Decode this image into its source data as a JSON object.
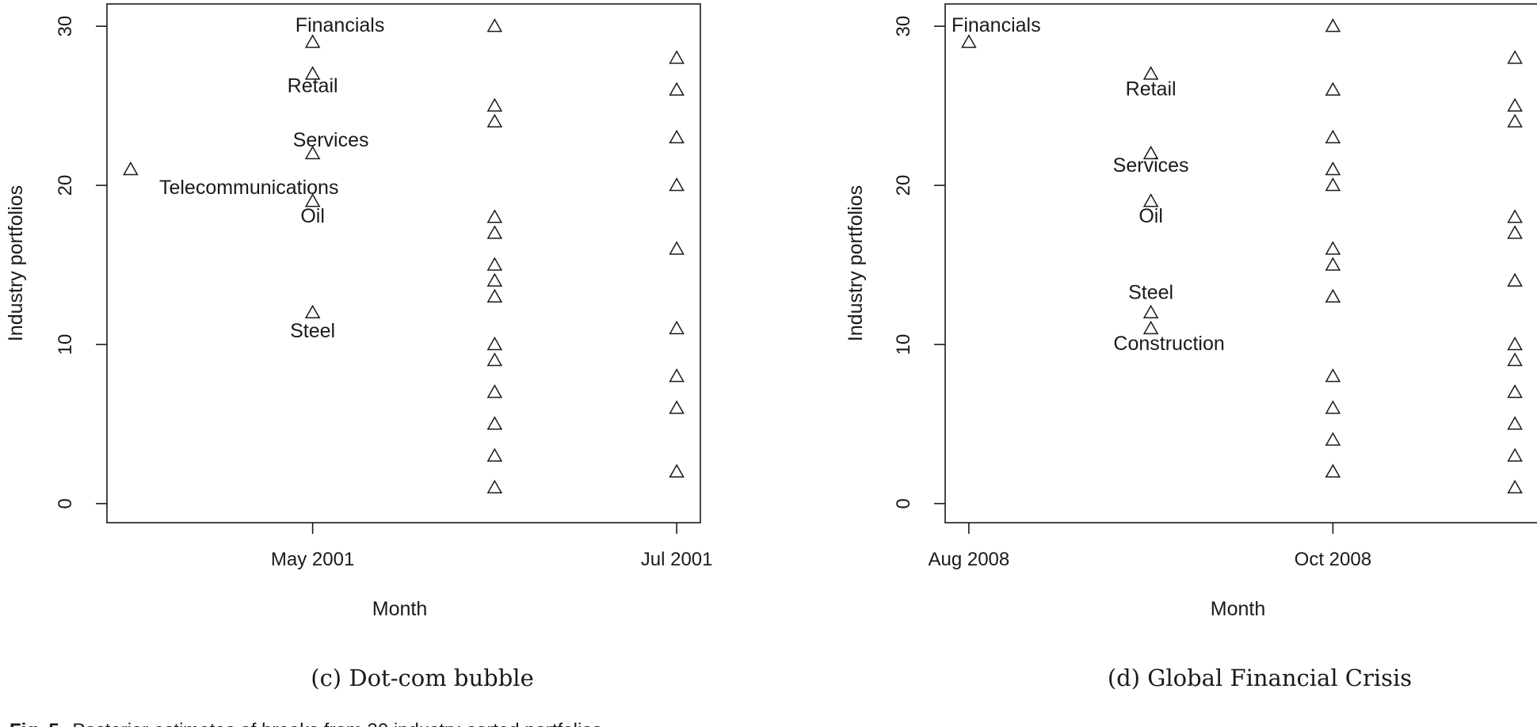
{
  "figure_caption": {
    "label": "Fig. 5.",
    "text": "Posterior estimates of breaks from 30 industry-sorted portfolios."
  },
  "chart_data": [
    {
      "type": "scatter",
      "subcaption": "(c) Dot-com bubble",
      "xlabel": "Month",
      "ylabel": "Industry portfolios",
      "ylim": [
        -1.2,
        31.4
      ],
      "yticks": [
        0,
        10,
        20,
        30
      ],
      "xlim": [
        -1.13,
        2.13
      ],
      "xticks": [
        {
          "x": 0,
          "label": "May 2001"
        },
        {
          "x": 2,
          "label": "Jul 2001"
        }
      ],
      "marker": "triangle-open",
      "points": [
        {
          "x": -1,
          "y": 21
        },
        {
          "x": 0,
          "y": 29
        },
        {
          "x": 0,
          "y": 27
        },
        {
          "x": 0,
          "y": 22
        },
        {
          "x": 0,
          "y": 19
        },
        {
          "x": 0,
          "y": 12
        },
        {
          "x": 1,
          "y": 30
        },
        {
          "x": 1,
          "y": 25
        },
        {
          "x": 1,
          "y": 24
        },
        {
          "x": 1,
          "y": 18
        },
        {
          "x": 1,
          "y": 17
        },
        {
          "x": 1,
          "y": 15
        },
        {
          "x": 1,
          "y": 14
        },
        {
          "x": 1,
          "y": 13
        },
        {
          "x": 1,
          "y": 10
        },
        {
          "x": 1,
          "y": 9
        },
        {
          "x": 1,
          "y": 7
        },
        {
          "x": 1,
          "y": 5
        },
        {
          "x": 1,
          "y": 3
        },
        {
          "x": 1,
          "y": 1
        },
        {
          "x": 2,
          "y": 28
        },
        {
          "x": 2,
          "y": 26
        },
        {
          "x": 2,
          "y": 23
        },
        {
          "x": 2,
          "y": 20
        },
        {
          "x": 2,
          "y": 16
        },
        {
          "x": 2,
          "y": 11
        },
        {
          "x": 2,
          "y": 8
        },
        {
          "x": 2,
          "y": 6
        },
        {
          "x": 2,
          "y": 2
        }
      ],
      "annotations": [
        {
          "text": "Financials",
          "x": 0.15,
          "y": 30.1
        },
        {
          "text": "Retail",
          "x": 0.0,
          "y": 26.3
        },
        {
          "text": "Services",
          "x": 0.1,
          "y": 22.9
        },
        {
          "text": "Telecommunications",
          "x": -0.35,
          "y": 19.9
        },
        {
          "text": "Oil",
          "x": 0.0,
          "y": 18.1
        },
        {
          "text": "Steel",
          "x": 0.0,
          "y": 10.9
        }
      ]
    },
    {
      "type": "scatter",
      "subcaption": "(d) Global Financial Crisis",
      "xlabel": "Month",
      "ylabel": "Industry portfolios",
      "ylim": [
        -1.2,
        31.4
      ],
      "yticks": [
        0,
        10,
        20,
        30
      ],
      "xlim": [
        -0.13,
        3.13
      ],
      "xticks": [
        {
          "x": 0,
          "label": "Aug 2008"
        },
        {
          "x": 2,
          "label": "Oct 2008"
        }
      ],
      "marker": "triangle-open",
      "points": [
        {
          "x": 0,
          "y": 29
        },
        {
          "x": 1,
          "y": 27
        },
        {
          "x": 1,
          "y": 22
        },
        {
          "x": 1,
          "y": 19
        },
        {
          "x": 1,
          "y": 12
        },
        {
          "x": 1,
          "y": 11
        },
        {
          "x": 2,
          "y": 30
        },
        {
          "x": 2,
          "y": 26
        },
        {
          "x": 2,
          "y": 23
        },
        {
          "x": 2,
          "y": 21
        },
        {
          "x": 2,
          "y": 20
        },
        {
          "x": 2,
          "y": 16
        },
        {
          "x": 2,
          "y": 15
        },
        {
          "x": 2,
          "y": 13
        },
        {
          "x": 2,
          "y": 8
        },
        {
          "x": 2,
          "y": 6
        },
        {
          "x": 2,
          "y": 4
        },
        {
          "x": 2,
          "y": 2
        },
        {
          "x": 3,
          "y": 28
        },
        {
          "x": 3,
          "y": 25
        },
        {
          "x": 3,
          "y": 24
        },
        {
          "x": 3,
          "y": 18
        },
        {
          "x": 3,
          "y": 17
        },
        {
          "x": 3,
          "y": 14
        },
        {
          "x": 3,
          "y": 10
        },
        {
          "x": 3,
          "y": 9
        },
        {
          "x": 3,
          "y": 7
        },
        {
          "x": 3,
          "y": 5
        },
        {
          "x": 3,
          "y": 3
        },
        {
          "x": 3,
          "y": 1
        }
      ],
      "annotations": [
        {
          "text": "Financials",
          "x": 0.15,
          "y": 30.1
        },
        {
          "text": "Retail",
          "x": 1.0,
          "y": 26.1
        },
        {
          "text": "Services",
          "x": 1.0,
          "y": 21.3
        },
        {
          "text": "Oil",
          "x": 1.0,
          "y": 18.1
        },
        {
          "text": "Steel",
          "x": 1.0,
          "y": 13.3
        },
        {
          "text": "Construction",
          "x": 1.1,
          "y": 10.1
        }
      ]
    }
  ]
}
